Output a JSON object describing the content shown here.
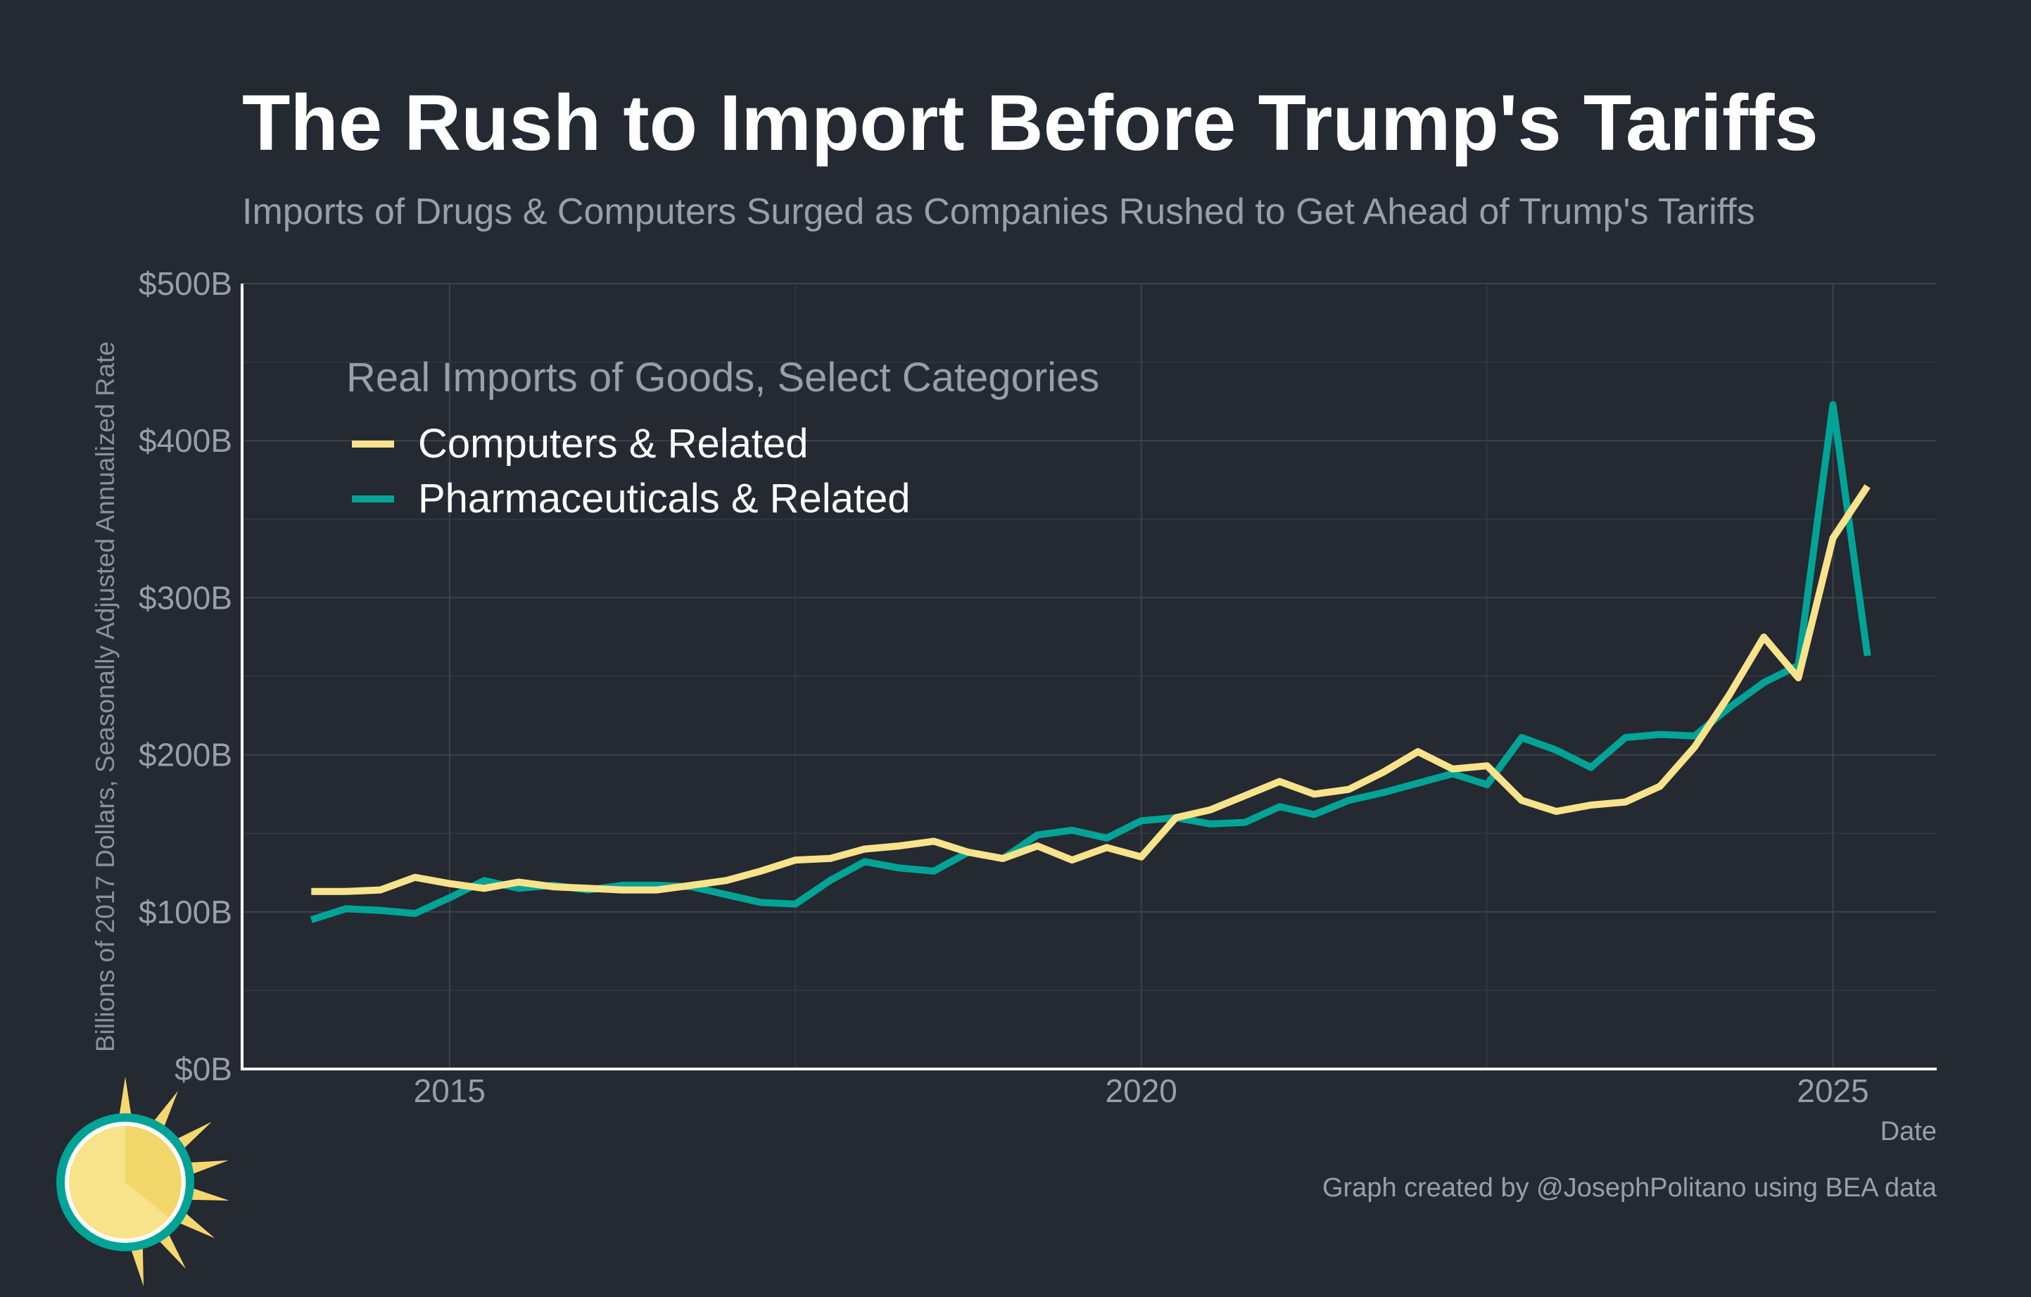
{
  "header": {
    "title": "The Rush to Import Before Trump's Tariffs",
    "subtitle": "Imports of Drugs & Computers Surged as Companies Rushed to Get Ahead of Trump's Tariffs"
  },
  "footer": {
    "credit": "Graph created by @JosephPolitano using BEA data",
    "logo_icon": "sun-logo-icon"
  },
  "colors": {
    "background": "#252931",
    "grid": "#3a3f48",
    "axis": "#ffffff",
    "tick_text": "#9a9ea6",
    "computers": "#f8e38b",
    "pharma": "#00a497",
    "title": "#ffffff"
  },
  "chart_data": {
    "type": "line",
    "title": "The Rush to Import Before Trump's Tariffs",
    "subtitle": "Imports of Drugs & Computers Surged as Companies Rushed to Get Ahead of Trump's Tariffs",
    "xlabel": "Date",
    "ylabel": "Billions of 2017 Dollars, Seasonally Adjusted Annualized Rate",
    "xlim": [
      2013.5,
      2025.75
    ],
    "ylim": [
      0,
      500
    ],
    "x_ticks": [
      2015,
      2020,
      2025
    ],
    "x_tick_labels": [
      "2015",
      "2020",
      "2025"
    ],
    "y_ticks": [
      0,
      100,
      200,
      300,
      400,
      500
    ],
    "y_tick_labels": [
      "$0B",
      "$100B",
      "$200B",
      "$300B",
      "$400B",
      "$500B"
    ],
    "grid": true,
    "legend": {
      "title": "Real Imports of Goods, Select Categories",
      "placement": "top-left"
    },
    "x": [
      "2014-Q1",
      "2014-Q2",
      "2014-Q3",
      "2014-Q4",
      "2015-Q1",
      "2015-Q2",
      "2015-Q3",
      "2015-Q4",
      "2016-Q1",
      "2016-Q2",
      "2016-Q3",
      "2016-Q4",
      "2017-Q1",
      "2017-Q2",
      "2017-Q3",
      "2017-Q4",
      "2018-Q1",
      "2018-Q2",
      "2018-Q3",
      "2018-Q4",
      "2019-Q1",
      "2019-Q2",
      "2019-Q3",
      "2019-Q4",
      "2020-Q1",
      "2020-Q2",
      "2020-Q3",
      "2020-Q4",
      "2021-Q1",
      "2021-Q2",
      "2021-Q3",
      "2021-Q4",
      "2022-Q1",
      "2022-Q2",
      "2022-Q3",
      "2022-Q4",
      "2023-Q1",
      "2023-Q2",
      "2023-Q3",
      "2023-Q4",
      "2024-Q1",
      "2024-Q2",
      "2024-Q3",
      "2024-Q4",
      "2025-Q1",
      "2025-Q2"
    ],
    "series": [
      {
        "name": "Computers & Related",
        "color": "#f8e38b",
        "values": [
          113,
          113,
          114,
          122,
          118,
          115,
          119,
          116,
          115,
          114,
          114,
          117,
          120,
          126,
          133,
          134,
          140,
          142,
          145,
          138,
          134,
          142,
          133,
          141,
          135,
          160,
          165,
          174,
          183,
          175,
          178,
          189,
          202,
          191,
          193,
          171,
          164,
          168,
          170,
          180,
          205,
          238,
          275,
          249,
          338,
          371
        ]
      },
      {
        "name": "Pharmaceuticals & Related",
        "color": "#00a497",
        "values": [
          95,
          102,
          101,
          99,
          109,
          120,
          115,
          117,
          114,
          117,
          117,
          116,
          111,
          106,
          105,
          120,
          132,
          128,
          126,
          138,
          134,
          149,
          152,
          147,
          158,
          160,
          156,
          157,
          167,
          162,
          171,
          176,
          182,
          188,
          181,
          211,
          203,
          192,
          211,
          213,
          212,
          230,
          246,
          257,
          423,
          263
        ]
      }
    ]
  }
}
